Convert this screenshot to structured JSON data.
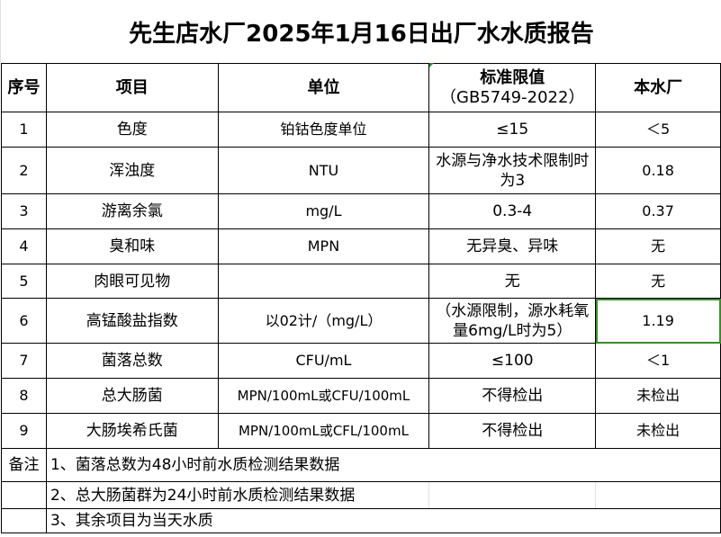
{
  "title": "先生店水厂2025年1月16日出厂水水质报告",
  "headers": [
    "序号",
    "项目",
    "单位",
    "标准限值",
    "（GB5749-2022）",
    "本水厂"
  ],
  "rows": [
    {
      "no": "1",
      "item": "色度",
      "unit": "铂钴色度单位",
      "limit": "≤15",
      "value": "＜5"
    },
    {
      "no": "2",
      "item": "浑浊度",
      "unit": "NTU",
      "limit": "水源与净水技术限制时为3",
      "value": "0.18"
    },
    {
      "no": "3",
      "item": "游离余氯",
      "unit": "mg/L",
      "limit": "0.3-4",
      "value": "0.37"
    },
    {
      "no": "4",
      "item": "臭和味",
      "unit": "MPN",
      "limit": "无异臭、异味",
      "value": "无"
    },
    {
      "no": "5",
      "item": "肉眼可见物",
      "unit": "",
      "limit": "无",
      "value": "无"
    },
    {
      "no": "6",
      "item": "高锰酸盐指数",
      "unit": "以02计/（mg/L）",
      "limit": "（水源限制，源水耗氧量6mg/L时为5）",
      "value": "1.19"
    },
    {
      "no": "7",
      "item": "菌落总数",
      "unit": "CFU/mL",
      "limit": "≤100",
      "value": "＜1"
    },
    {
      "no": "8",
      "item": "总大肠菌",
      "unit": "MPN/100mL或CFU/100mL",
      "limit": "不得检出",
      "value": "未检出"
    },
    {
      "no": "9",
      "item": "大肠埃希氏菌",
      "unit": "MPN/100mL或CFL/100mL",
      "limit": "不得检出",
      "value": "未检出"
    }
  ],
  "notes_label": "备注",
  "notes": [
    "1、菌落总数为48小时前水质检测结果数据",
    "2、总大肠菌群为24小时前水质检测结果数据",
    "3、其余项目为当天水质"
  ],
  "selected_cell_color": "#3c8a2e"
}
